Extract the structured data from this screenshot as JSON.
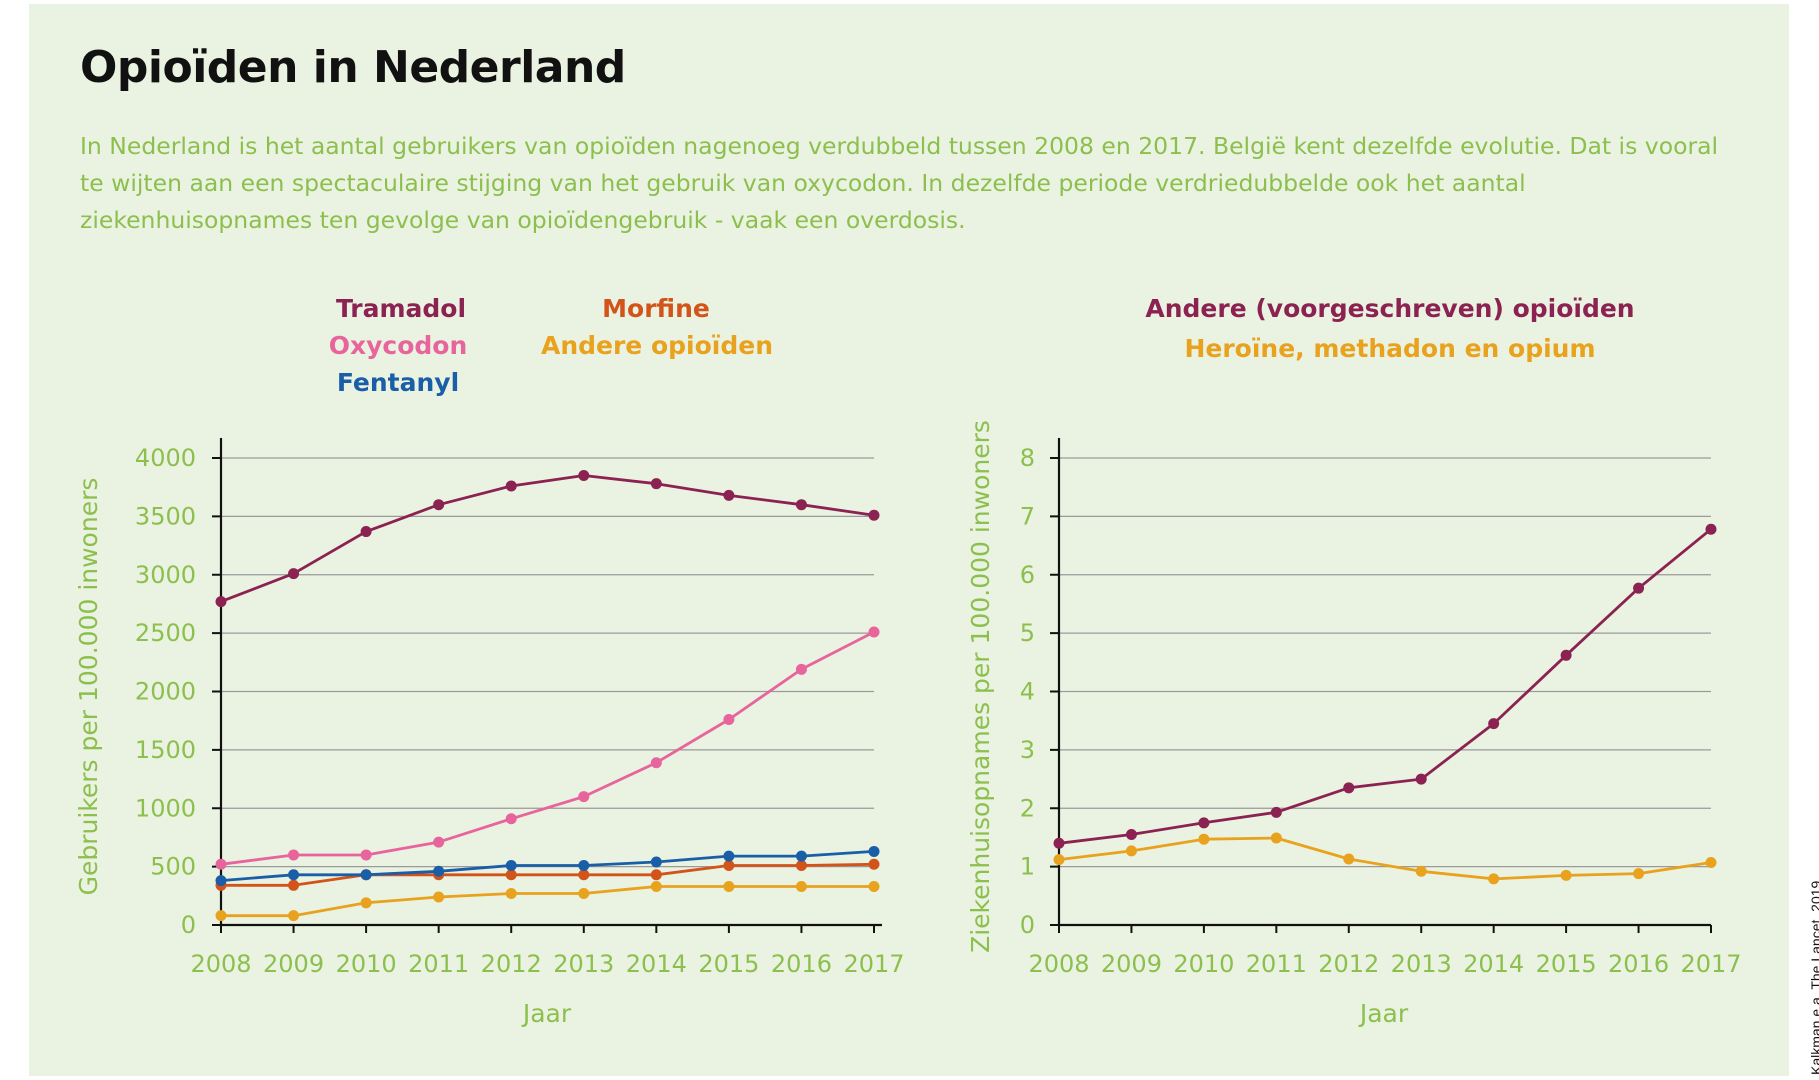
{
  "title": "Opioïden in Nederland",
  "intro": "In Nederland is het aantal gebruikers van opioïden nagenoeg verdubbeld tussen 2008 en 2017. België kent dezelfde evolutie. Dat is vooral te wijten aan een spectaculaire stijging van het gebruik van oxycodon. In dezelfde periode verdriedubbelde ook het aantal ziekenhuisopnames ten gevolge van opioïdengebruik - vaak een overdosis.",
  "source": "Kalkman e.a, The Lancet, 2019",
  "chart_data": [
    {
      "type": "line",
      "title": "",
      "xlabel": "Jaar",
      "ylabel": "Gebruikers per 100.000 inwoners",
      "x": [
        "2008",
        "2009",
        "2010",
        "2011",
        "2012",
        "2013",
        "2014",
        "2015",
        "2016",
        "2017"
      ],
      "ylim": [
        0,
        4000
      ],
      "yticks": [
        0,
        500,
        1000,
        1500,
        2000,
        2500,
        3000,
        3500,
        4000
      ],
      "grid": true,
      "legend": "top",
      "series": [
        {
          "name": "Tramadol",
          "color": "#8b2252",
          "values": [
            2770,
            3010,
            3370,
            3600,
            3760,
            3850,
            3780,
            3680,
            3600,
            3510
          ]
        },
        {
          "name": "Oxycodon",
          "color": "#e8649c",
          "values": [
            520,
            600,
            600,
            710,
            910,
            1100,
            1390,
            1760,
            2190,
            2510
          ]
        },
        {
          "name": "Fentanyl",
          "color": "#1a5ea8",
          "values": [
            380,
            430,
            430,
            460,
            510,
            510,
            540,
            590,
            590,
            630
          ]
        },
        {
          "name": "Morfine",
          "color": "#d2541a",
          "values": [
            340,
            340,
            430,
            430,
            430,
            430,
            430,
            510,
            510,
            520
          ]
        },
        {
          "name": "Andere opioïden",
          "color": "#e8a21e",
          "values": [
            80,
            80,
            190,
            240,
            270,
            270,
            330,
            330,
            330,
            330
          ]
        }
      ]
    },
    {
      "type": "line",
      "title": "",
      "xlabel": "Jaar",
      "ylabel": "Ziekenhuisopnames per 100.000 inwoners",
      "x": [
        "2008",
        "2009",
        "2010",
        "2011",
        "2012",
        "2013",
        "2014",
        "2015",
        "2016",
        "2017"
      ],
      "ylim": [
        0,
        8
      ],
      "yticks": [
        0,
        1,
        2,
        3,
        4,
        5,
        6,
        7,
        8
      ],
      "grid": true,
      "legend": "top",
      "series": [
        {
          "name": "Andere (voorgeschreven) opioïden",
          "color": "#8b2252",
          "values": [
            1.4,
            1.55,
            1.75,
            1.93,
            2.35,
            2.5,
            3.45,
            4.62,
            5.77,
            6.78
          ]
        },
        {
          "name": "Heroïne, methadon en opium",
          "color": "#e8a21e",
          "values": [
            1.12,
            1.27,
            1.47,
            1.49,
            1.13,
            0.92,
            0.79,
            0.85,
            0.88,
            1.07
          ]
        }
      ]
    }
  ]
}
